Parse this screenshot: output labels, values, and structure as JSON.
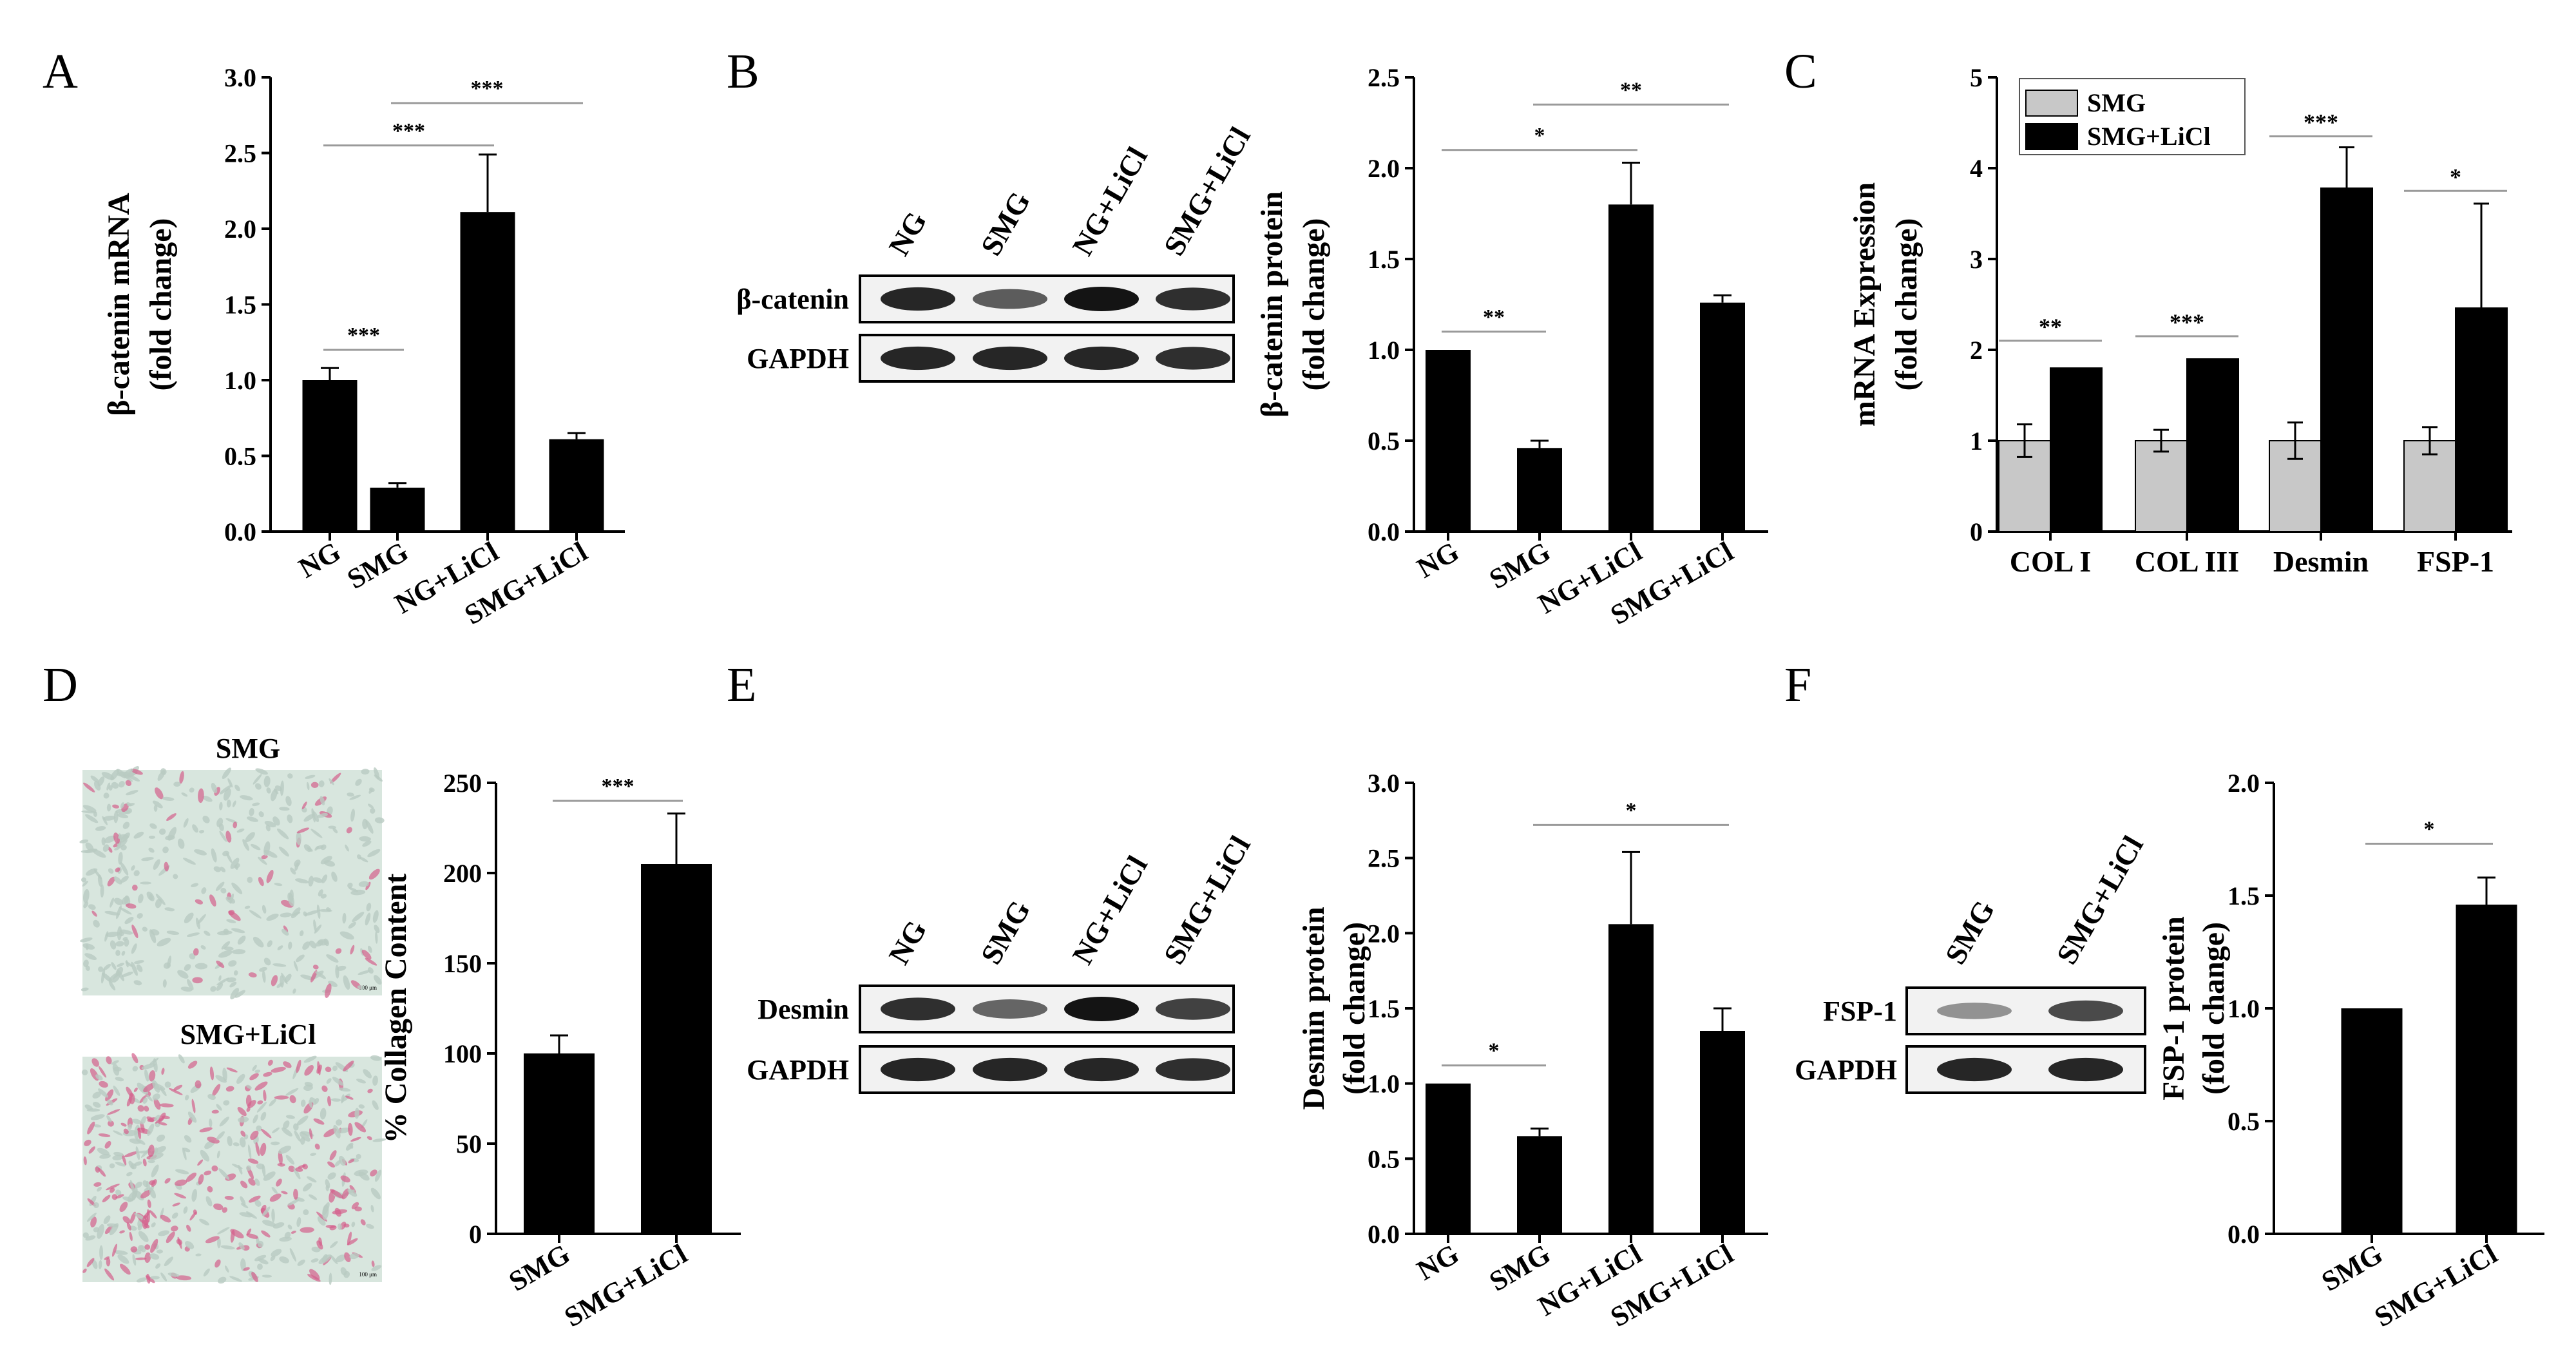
{
  "chart_data": [
    {
      "panel": "A",
      "type": "bar",
      "categories": [
        "NG",
        "SMG",
        "NG+LiCl",
        "SMG+LiCl"
      ],
      "values": [
        1.0,
        0.29,
        2.11,
        0.61
      ],
      "errors": [
        0.08,
        0.03,
        0.38,
        0.04
      ],
      "ylabel": [
        "β-catenin mRNA",
        "(fold change)"
      ],
      "ylim": [
        0,
        3.0
      ],
      "yticks": [
        "0.0",
        "0.5",
        "1.0",
        "1.5",
        "2.0",
        "2.5",
        "3.0"
      ],
      "significance": [
        {
          "from": 0,
          "to": 1,
          "label": "***",
          "level": 1.2
        },
        {
          "from": 0,
          "to": 2,
          "label": "***",
          "level": 2.55
        },
        {
          "from": 1,
          "to": 3,
          "label": "***",
          "level": 2.83
        }
      ]
    },
    {
      "panel": "B",
      "type": "bar",
      "categories": [
        "NG",
        "SMG",
        "NG+LiCl",
        "SMG+LiCl"
      ],
      "values": [
        1.0,
        0.46,
        1.8,
        1.26
      ],
      "errors": [
        0.0,
        0.04,
        0.23,
        0.04
      ],
      "ylabel": [
        "β-catenin protein",
        "(fold change)"
      ],
      "ylim": [
        0,
        2.5
      ],
      "yticks": [
        "0.0",
        "0.5",
        "1.0",
        "1.5",
        "2.0",
        "2.5"
      ],
      "significance": [
        {
          "from": 0,
          "to": 1,
          "label": "**",
          "level": 1.1
        },
        {
          "from": 0,
          "to": 2,
          "label": "*",
          "level": 2.1
        },
        {
          "from": 1,
          "to": 3,
          "label": "**",
          "level": 2.35
        }
      ]
    },
    {
      "panel": "C",
      "type": "bar",
      "categories": [
        "COL I",
        "COL III",
        "Desmin",
        "FSP-1"
      ],
      "series": [
        {
          "name": "SMG",
          "values": [
            1.0,
            1.0,
            1.0,
            1.0
          ],
          "errors": [
            0.18,
            0.12,
            0.2,
            0.15
          ]
        },
        {
          "name": "SMG+LiCl",
          "values": [
            1.8,
            1.9,
            3.78,
            2.46
          ],
          "errors": [
            0.0,
            0.0,
            0.45,
            1.15
          ]
        }
      ],
      "ylabel": [
        "mRNA Expression",
        "(fold change)"
      ],
      "ylim": [
        0,
        5
      ],
      "yticks": [
        "0",
        "1",
        "2",
        "3",
        "4",
        "5"
      ],
      "significance": [
        {
          "cat": 0,
          "label": "**",
          "level": 2.1
        },
        {
          "cat": 1,
          "label": "***",
          "level": 2.15
        },
        {
          "cat": 2,
          "label": "***",
          "level": 4.35
        },
        {
          "cat": 3,
          "label": "*",
          "level": 3.75
        }
      ]
    },
    {
      "panel": "D",
      "type": "bar",
      "categories": [
        "SMG",
        "SMG+LiCl"
      ],
      "values": [
        100,
        205
      ],
      "errors": [
        10,
        28
      ],
      "ylabel": [
        "% Collagen Content"
      ],
      "ylim": [
        0,
        250
      ],
      "yticks": [
        "0",
        "50",
        "100",
        "150",
        "200",
        "250"
      ],
      "significance": [
        {
          "from": 0,
          "to": 1,
          "label": "***",
          "level": 240
        }
      ]
    },
    {
      "panel": "E",
      "type": "bar",
      "categories": [
        "NG",
        "SMG",
        "NG+LiCl",
        "SMG+LiCl"
      ],
      "values": [
        1.0,
        0.65,
        2.06,
        1.35
      ],
      "errors": [
        0.0,
        0.05,
        0.48,
        0.15
      ],
      "ylabel": [
        "Desmin protein",
        "(fold change)"
      ],
      "ylim": [
        0,
        3.0
      ],
      "yticks": [
        "0.0",
        "0.5",
        "1.0",
        "1.5",
        "2.0",
        "2.5",
        "3.0"
      ],
      "significance": [
        {
          "from": 0,
          "to": 1,
          "label": "*",
          "level": 1.12
        },
        {
          "from": 1,
          "to": 3,
          "label": "*",
          "level": 2.72
        }
      ]
    },
    {
      "panel": "F",
      "type": "bar",
      "categories": [
        "SMG",
        "SMG+LiCl"
      ],
      "values": [
        1.0,
        1.46
      ],
      "errors": [
        0.0,
        0.12
      ],
      "ylabel": [
        "FSP-1 protein",
        "(fold change)"
      ],
      "ylim": [
        0,
        2.0
      ],
      "yticks": [
        "0.0",
        "0.5",
        "1.0",
        "1.5",
        "2.0"
      ],
      "significance": [
        {
          "from": 0,
          "to": 1,
          "label": "*",
          "level": 1.73
        }
      ]
    }
  ],
  "panel_letters": [
    "A",
    "B",
    "C",
    "D",
    "E",
    "F"
  ],
  "blots": {
    "B": {
      "lanes": [
        "NG",
        "SMG",
        "NG+LiCl",
        "SMG+LiCl"
      ],
      "rows": [
        "β-catenin",
        "GAPDH"
      ]
    },
    "E": {
      "lanes": [
        "NG",
        "SMG",
        "NG+LiCl",
        "SMG+LiCl"
      ],
      "rows": [
        "Desmin",
        "GAPDH"
      ]
    },
    "F": {
      "lanes": [
        "SMG",
        "SMG+LiCl"
      ],
      "rows": [
        "FSP-1",
        "GAPDH"
      ]
    }
  },
  "micrographs": {
    "top_label": "SMG",
    "bottom_label": "SMG+LiCl",
    "scale_label": "100 μm"
  },
  "colors": {
    "bar": "#000000",
    "series": [
      "#c8c8c8",
      "#000000"
    ],
    "sig_line": "#9a9a9a",
    "tissue_bg": "#d8e6de",
    "stain": "#d4608c"
  }
}
